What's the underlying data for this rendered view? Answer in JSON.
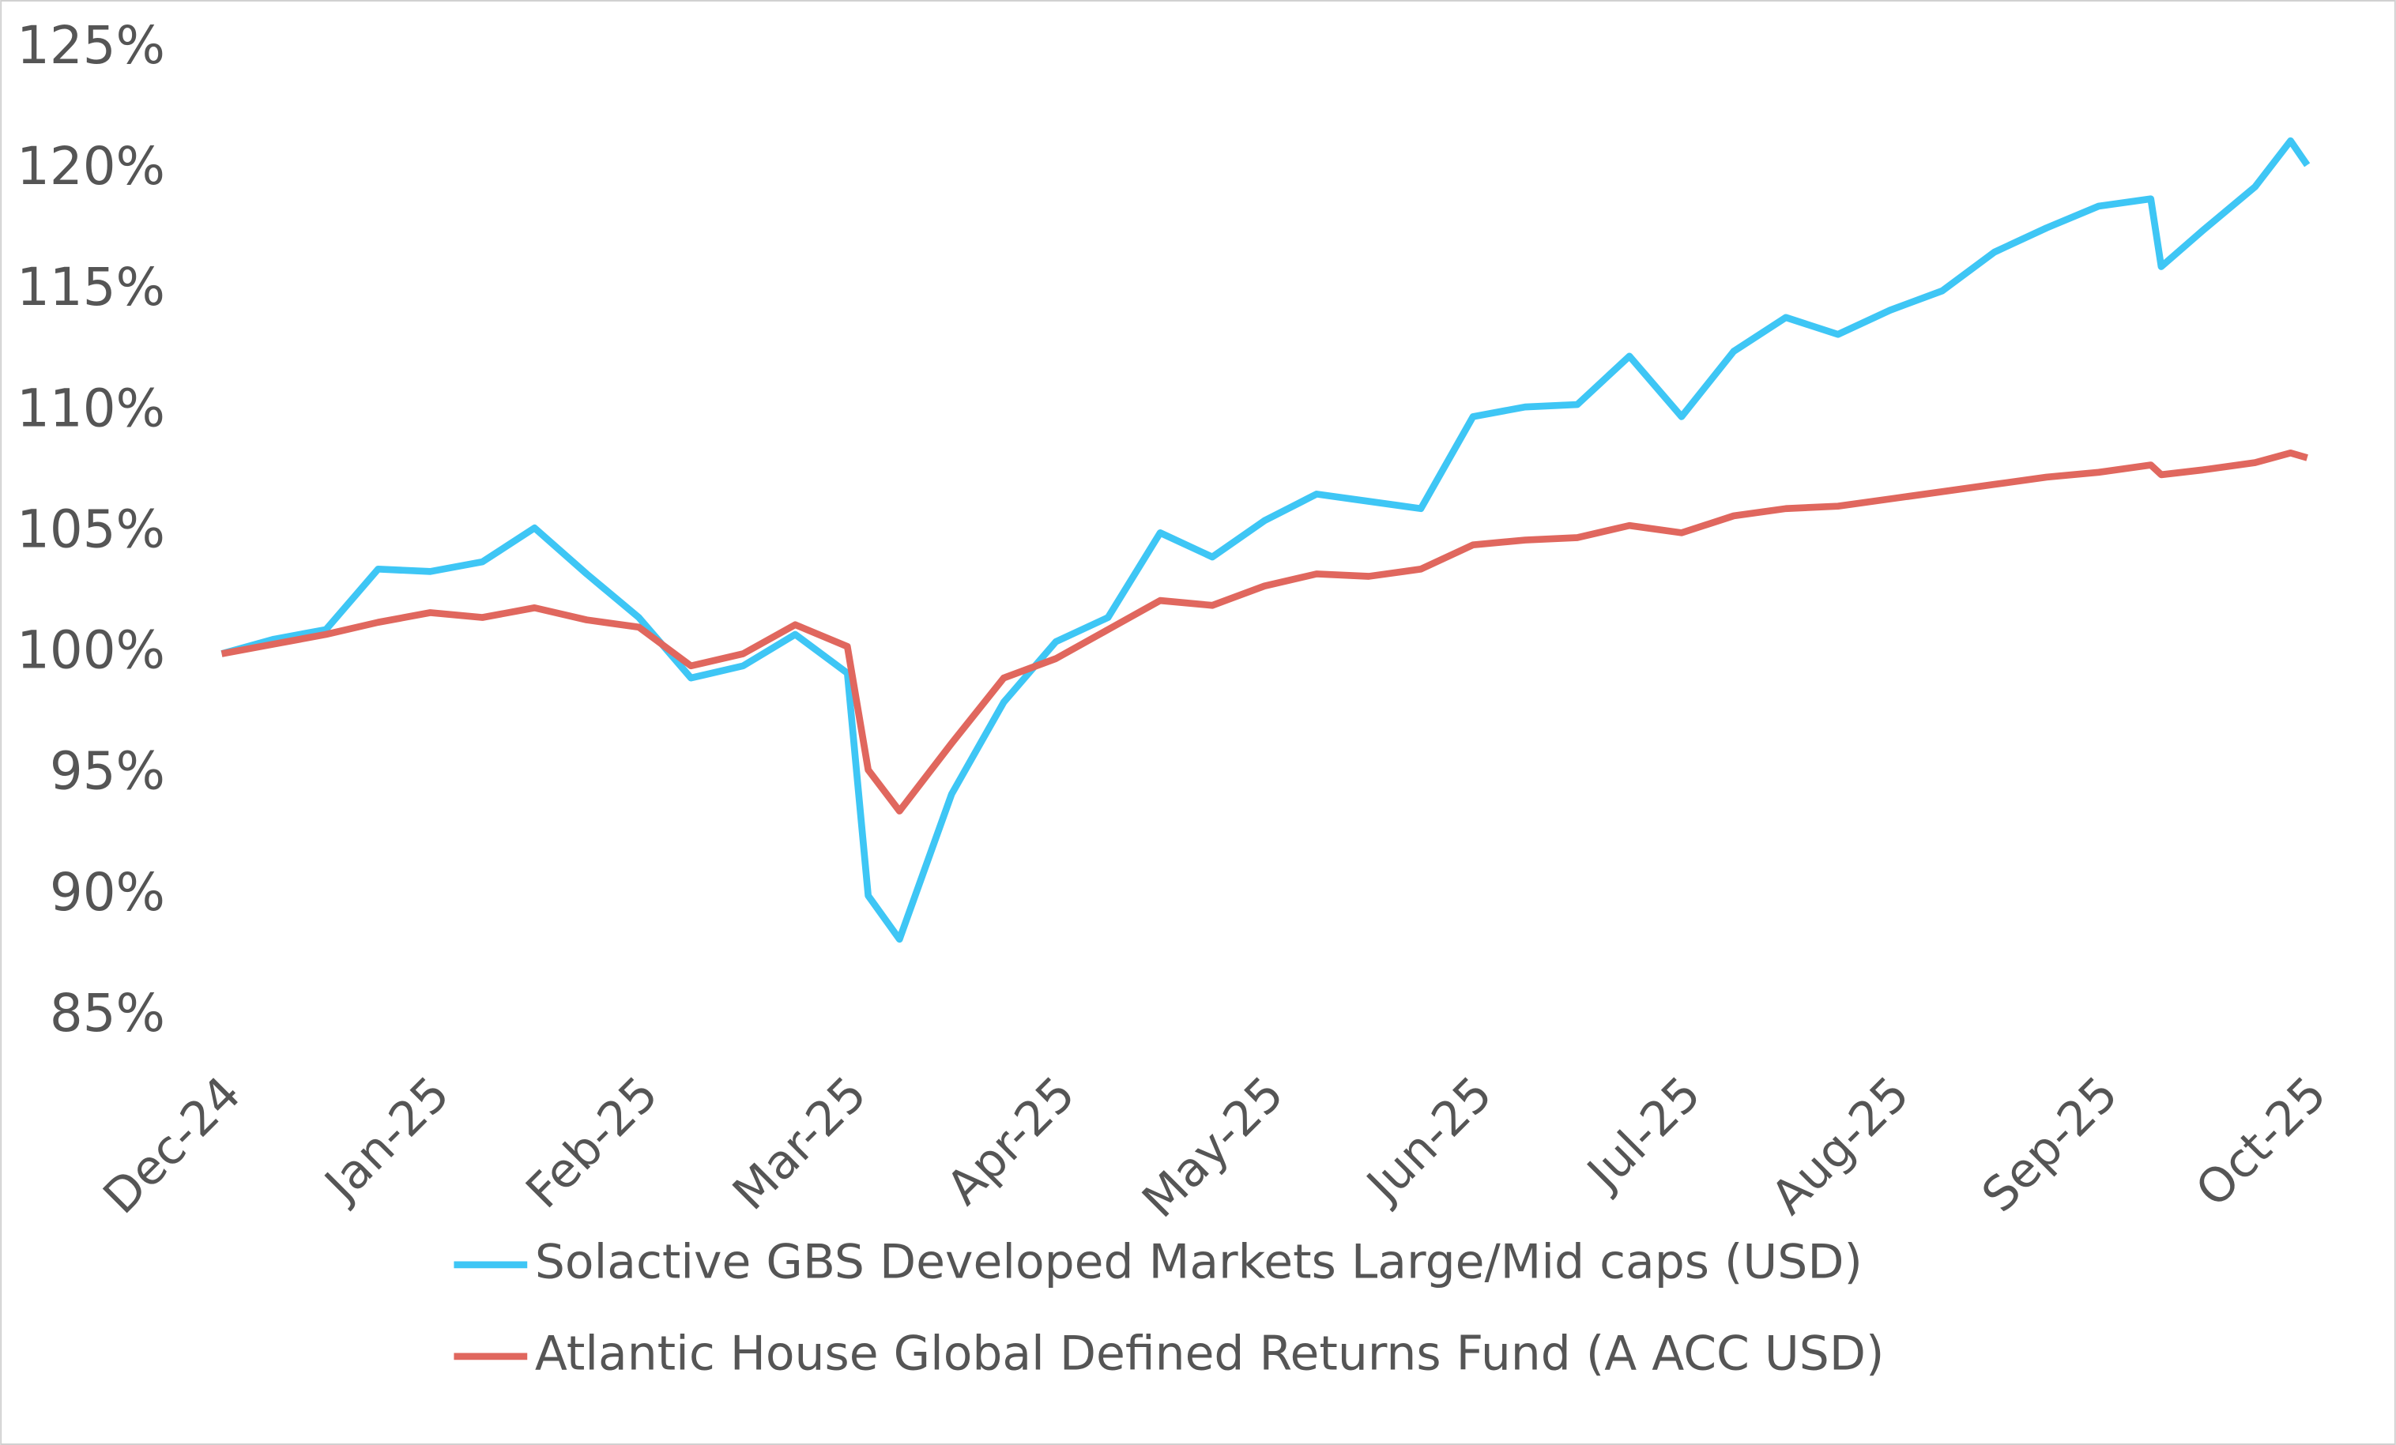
{
  "chart_data": {
    "type": "line",
    "x": [
      0,
      0.25,
      0.5,
      0.75,
      1.0,
      1.25,
      1.5,
      1.75,
      2.0,
      2.25,
      2.5,
      2.75,
      3.0,
      3.1,
      3.25,
      3.5,
      3.75,
      4.0,
      4.25,
      4.5,
      4.75,
      5.0,
      5.25,
      5.5,
      5.75,
      6.0,
      6.25,
      6.5,
      6.75,
      7.0,
      7.25,
      7.5,
      7.75,
      8.0,
      8.25,
      8.5,
      8.75,
      9.0,
      9.25,
      9.3,
      9.5,
      9.75,
      9.92,
      10.0
    ],
    "series": [
      {
        "name": "Solactive GBS Developed Markets Large/Mid caps (USD)",
        "color": "#3ec6f5",
        "values": [
          100,
          100.6,
          101,
          103.5,
          103.4,
          103.8,
          105.2,
          103.3,
          101.5,
          99.0,
          99.5,
          100.8,
          99.2,
          90,
          88.2,
          94.2,
          98.0,
          100.5,
          101.5,
          105.0,
          104.0,
          105.5,
          106.6,
          106.3,
          106.0,
          109.8,
          110.2,
          110.3,
          112.3,
          109.8,
          112.5,
          113.9,
          113.2,
          114.2,
          115.0,
          116.6,
          117.6,
          118.5,
          118.8,
          116.0,
          117.5,
          119.3,
          121.2,
          120.2
        ]
      },
      {
        "name": "Atlantic House Global Defined Returns Fund (A ACC USD)",
        "color": "#e0675e",
        "values": [
          100,
          100.4,
          100.8,
          101.3,
          101.7,
          101.5,
          101.9,
          101.4,
          101.1,
          99.5,
          100.0,
          101.2,
          100.3,
          95.2,
          93.5,
          96.3,
          99.0,
          99.8,
          101.0,
          102.2,
          102.0,
          102.8,
          103.3,
          103.2,
          103.5,
          104.5,
          104.7,
          104.8,
          105.3,
          105.0,
          105.7,
          106.0,
          106.1,
          106.4,
          106.7,
          107.0,
          107.3,
          107.5,
          107.8,
          107.4,
          107.6,
          107.9,
          108.3,
          108.1
        ]
      }
    ],
    "xlim": [
      0,
      10
    ],
    "xticks": [
      {
        "value": 0,
        "label": "Dec-24"
      },
      {
        "value": 1,
        "label": "Jan-25"
      },
      {
        "value": 2,
        "label": "Feb-25"
      },
      {
        "value": 3,
        "label": "Mar-25"
      },
      {
        "value": 4,
        "label": "Apr-25"
      },
      {
        "value": 5,
        "label": "May-25"
      },
      {
        "value": 6,
        "label": "Jun-25"
      },
      {
        "value": 7,
        "label": "Jul-25"
      },
      {
        "value": 8,
        "label": "Aug-25"
      },
      {
        "value": 9,
        "label": "Sep-25"
      },
      {
        "value": 10,
        "label": "Oct-25"
      }
    ],
    "ylim": [
      85,
      125
    ],
    "yticks": [
      {
        "value": 85,
        "label": "85%"
      },
      {
        "value": 90,
        "label": "90%"
      },
      {
        "value": 95,
        "label": "95%"
      },
      {
        "value": 100,
        "label": "100%"
      },
      {
        "value": 105,
        "label": "105%"
      },
      {
        "value": 110,
        "label": "110%"
      },
      {
        "value": 115,
        "label": "115%"
      },
      {
        "value": 120,
        "label": "120%"
      },
      {
        "value": 125,
        "label": "125%"
      }
    ],
    "grid": false
  }
}
